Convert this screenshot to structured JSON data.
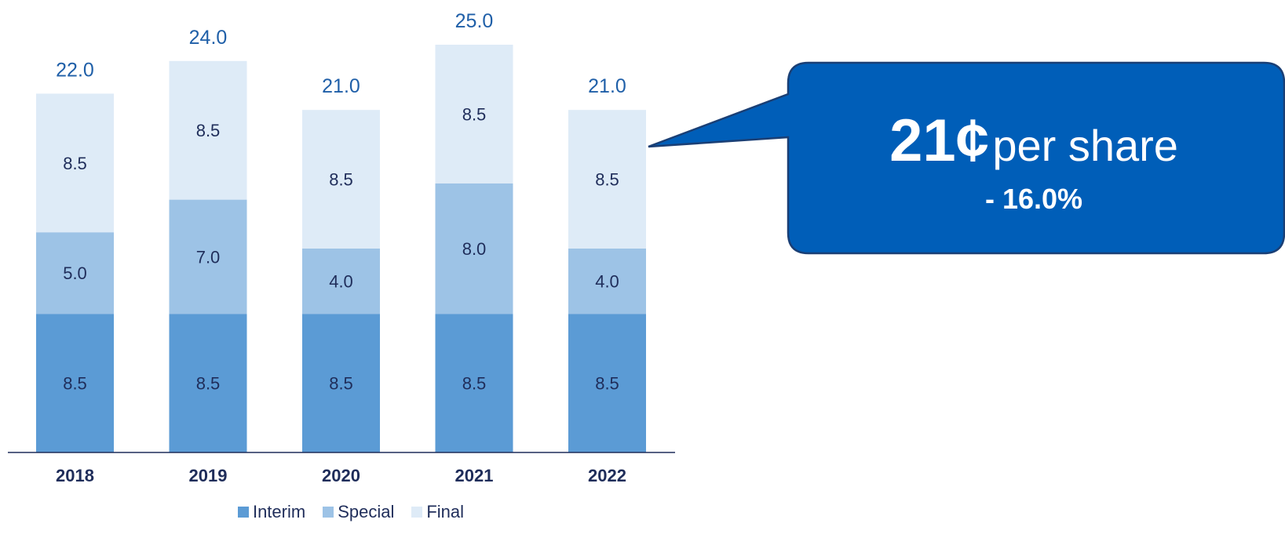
{
  "chart_data": {
    "type": "bar",
    "stacked": true,
    "categories": [
      "2018",
      "2019",
      "2020",
      "2021",
      "2022"
    ],
    "series": [
      {
        "name": "Interim",
        "values": [
          8.5,
          8.5,
          8.5,
          8.5,
          8.5
        ],
        "color": "#5b9bd5"
      },
      {
        "name": "Special",
        "values": [
          5.0,
          7.0,
          4.0,
          8.0,
          4.0
        ],
        "color": "#9dc3e6"
      },
      {
        "name": "Final",
        "values": [
          8.5,
          8.5,
          8.5,
          8.5,
          8.5
        ],
        "color": "#deebf7"
      }
    ],
    "segment_labels": [
      [
        "8.5",
        "5.0",
        "8.5"
      ],
      [
        "8.5",
        "7.0",
        "8.5"
      ],
      [
        "8.5",
        "4.0",
        "8.5"
      ],
      [
        "8.5",
        "8.0",
        "8.5"
      ],
      [
        "8.5",
        "4.0",
        "8.5"
      ]
    ],
    "totals": [
      "22.0",
      "24.0",
      "21.0",
      "25.0",
      "21.0"
    ],
    "ylim": [
      0,
      25
    ],
    "grid": false,
    "legend_position": "bottom"
  },
  "callout": {
    "value": "21¢",
    "unit": "per share",
    "change": "- 16.0%",
    "fill_color": "#005eb8",
    "border_color": "#1a3f75"
  },
  "colors": {
    "label_dark": "#1f2d5a",
    "total_blue": "#1f5fa8",
    "axis": "#1f2d5a"
  }
}
